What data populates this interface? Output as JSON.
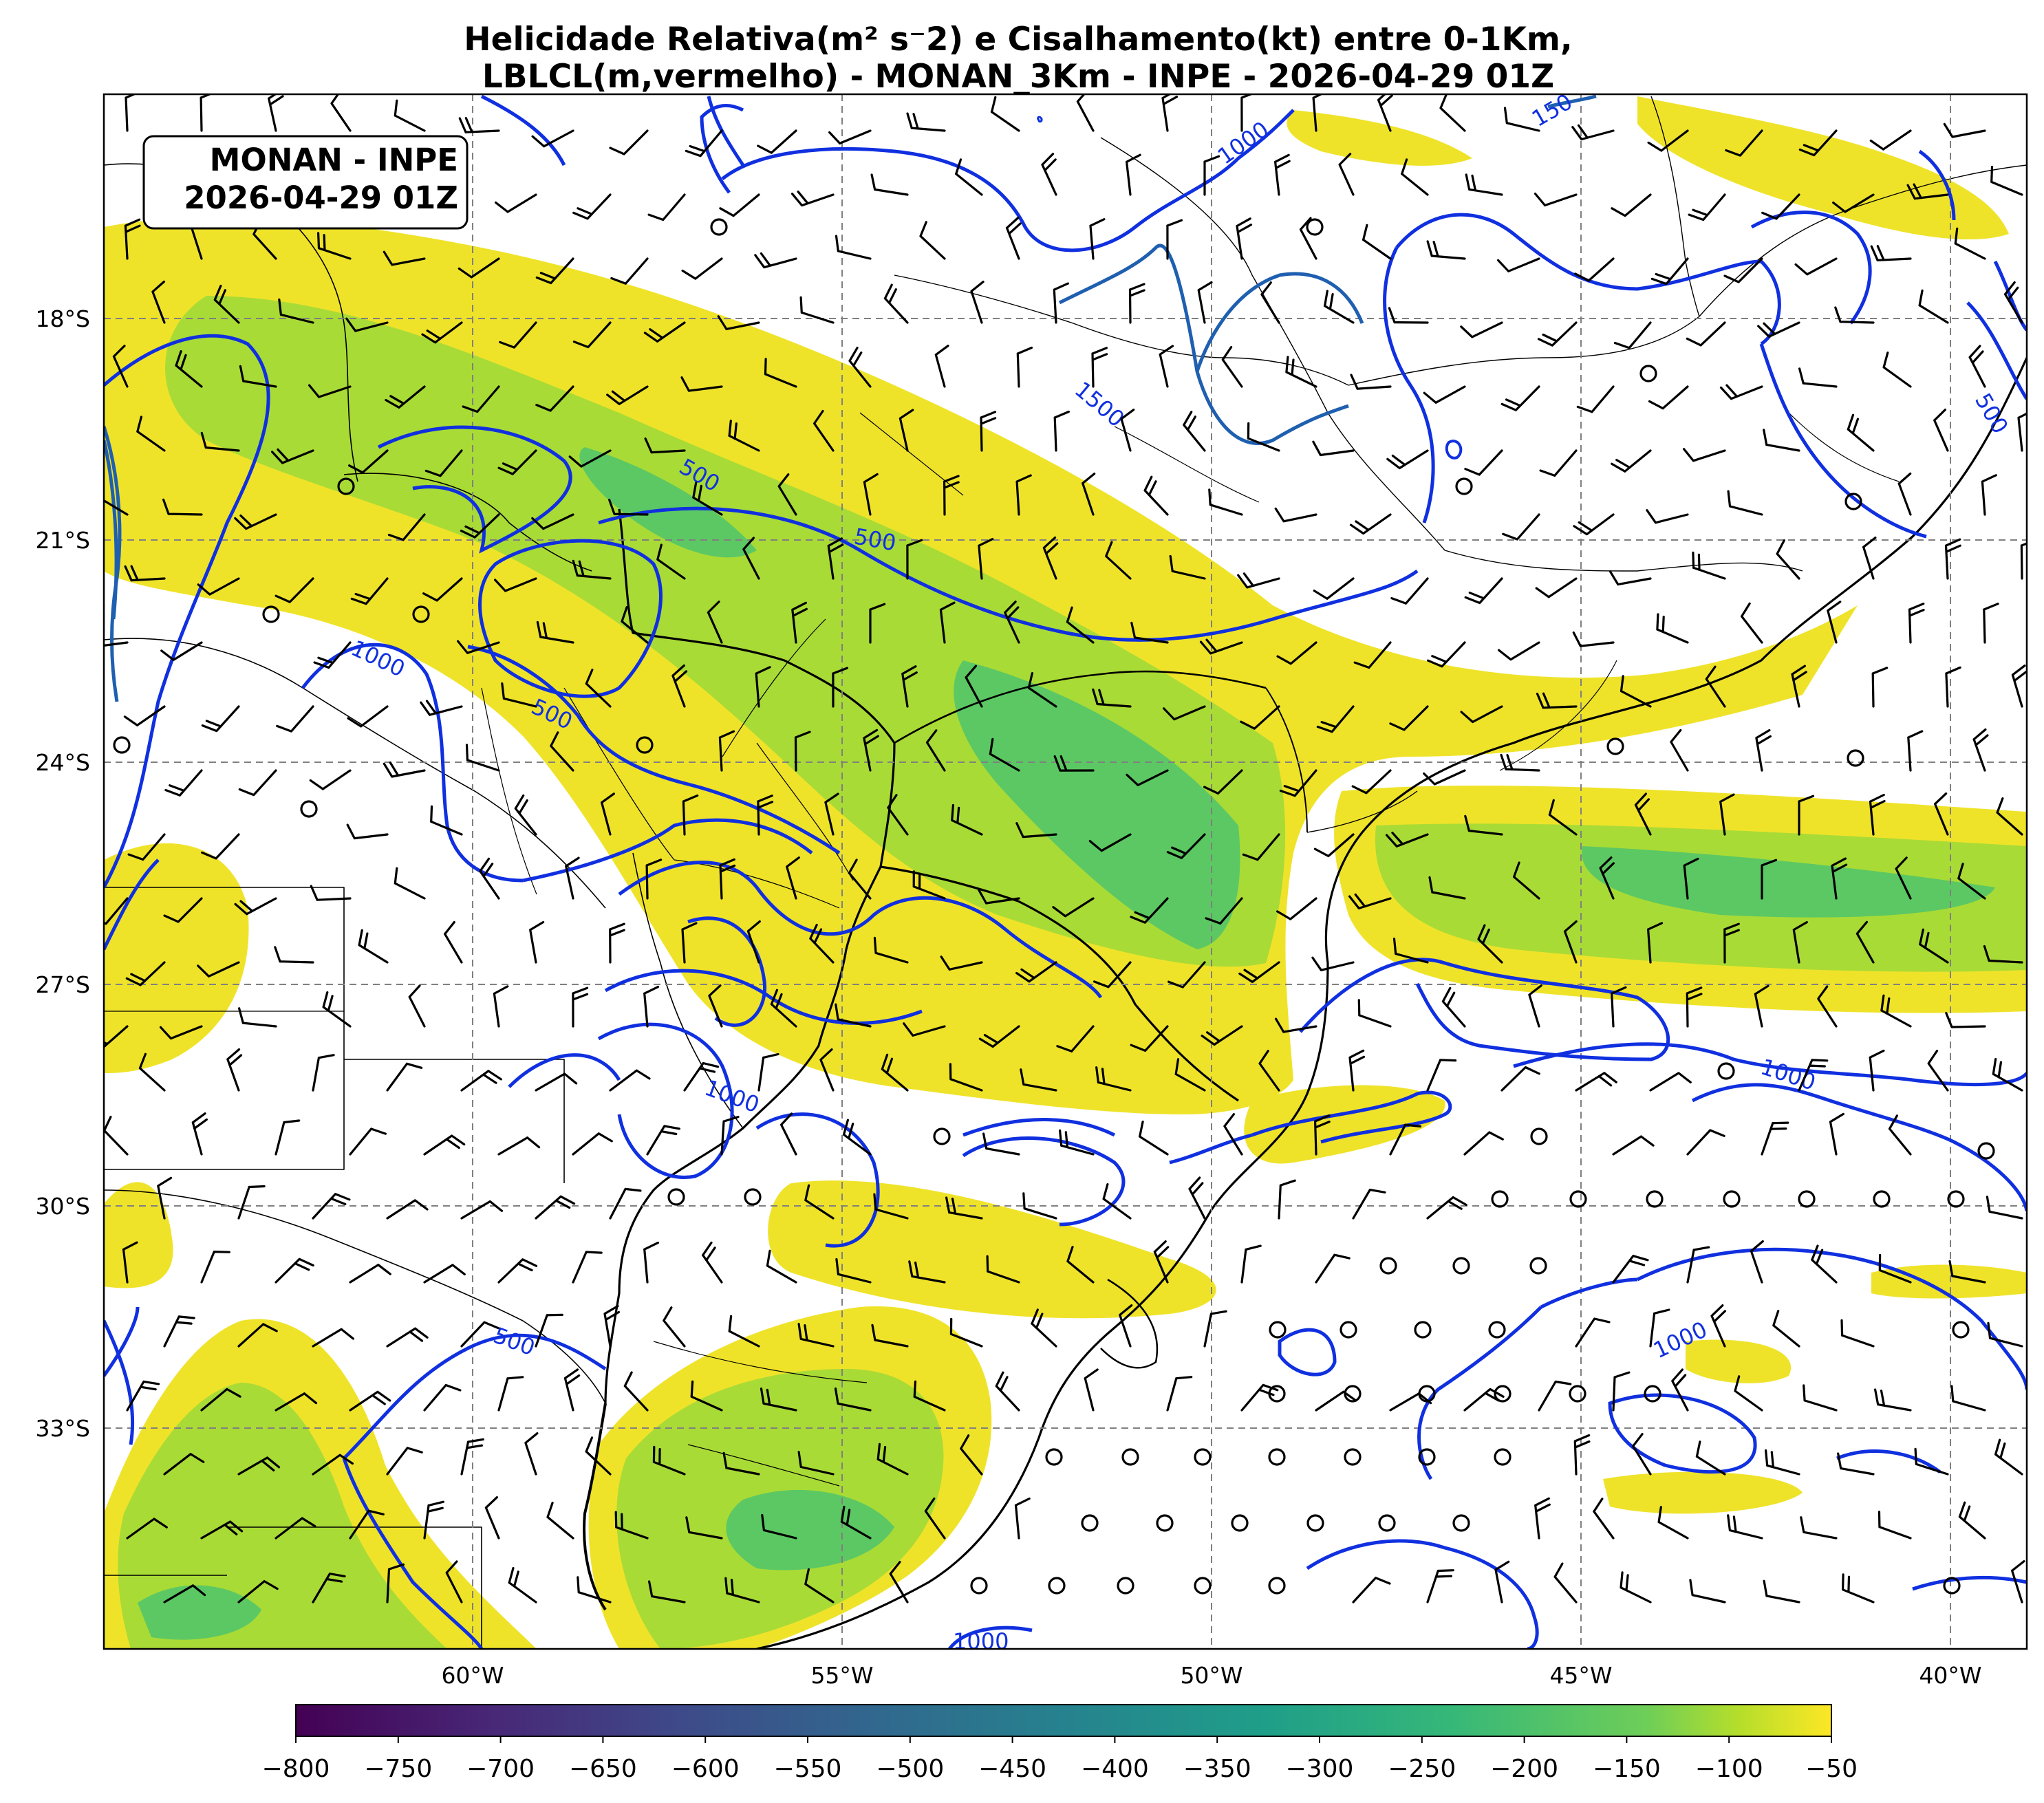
{
  "title": {
    "line1": "Helicidade Relativa(m² s⁻2) e Cisalhamento(kt) entre 0-1Km,",
    "line2": "LBLCL(m,vermelho) - MONAN_3Km - INPE - 2026-04-29 01Z"
  },
  "badge": {
    "line1": "MONAN - INPE",
    "line2": "2026-04-29 01Z"
  },
  "axes": {
    "lon_ticks": [
      "60°W",
      "55°W",
      "50°W",
      "45°W",
      "40°W"
    ],
    "lat_ticks": [
      "18°S",
      "21°S",
      "24°S",
      "27°S",
      "30°S",
      "33°S"
    ],
    "lon_range": [
      -64.7,
      -38.7
    ],
    "lat_range": [
      -36.5,
      -15.5
    ],
    "grid": true
  },
  "colorbar": {
    "ticks": [
      "−800",
      "−750",
      "−700",
      "−650",
      "−600",
      "−550",
      "−500",
      "−450",
      "−400",
      "−350",
      "−300",
      "−250",
      "−200",
      "−150",
      "−100",
      "−50"
    ],
    "min": -800,
    "max": -50,
    "colormap": "viridis"
  },
  "contour_labels": [
    {
      "text": "500"
    },
    {
      "text": "500"
    },
    {
      "text": "500"
    },
    {
      "text": "500"
    },
    {
      "text": "500"
    },
    {
      "text": "1000"
    },
    {
      "text": "1000"
    },
    {
      "text": "1000"
    },
    {
      "text": "1000"
    },
    {
      "text": "1000"
    },
    {
      "text": "1000"
    },
    {
      "text": "1500"
    },
    {
      "text": "150"
    }
  ],
  "colors": {
    "contour": "#1030e0",
    "contour_dark": "#1f5fb0",
    "shading_light": "#efe32a",
    "shading_mid": "#a9db36",
    "shading_strong": "#5cc863",
    "grid": "#808080"
  }
}
